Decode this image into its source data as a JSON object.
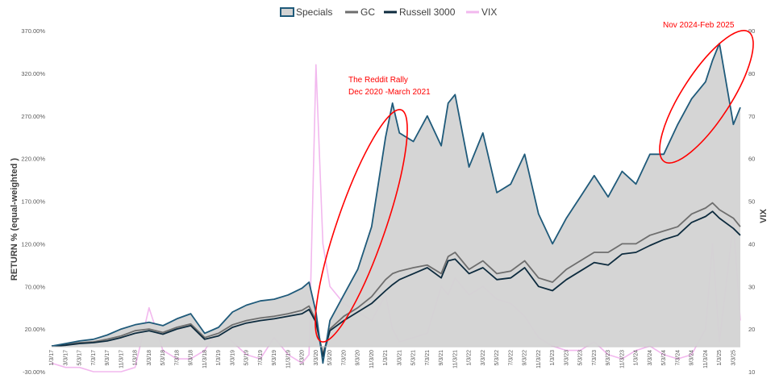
{
  "chart_data": {
    "type": "line",
    "legend": [
      {
        "name": "Specials",
        "color": "#1f5a7a",
        "style": "area-outline"
      },
      {
        "name": "GC",
        "color": "#6e6e6e",
        "style": "line"
      },
      {
        "name": "Russell 3000",
        "color": "#0d2b3e",
        "style": "line"
      },
      {
        "name": "VIX",
        "color": "#f2b8ee",
        "style": "line"
      }
    ],
    "legend_position": "top",
    "ylabel_left": "RETURN % (equal-weighted )",
    "ylabel_right": "VIX",
    "y_left_ticks": [
      "370.00%",
      "320.00%",
      "270.00%",
      "220.00%",
      "170.00%",
      "120.00%",
      "70.00%",
      "20.00%",
      "-30.00%"
    ],
    "y_left_range": [
      -30,
      370
    ],
    "y_right_ticks": [
      "90",
      "80",
      "70",
      "60",
      "50",
      "40",
      "30",
      "20",
      "10"
    ],
    "y_right_range": [
      10,
      90
    ],
    "x_ticks": [
      "1/3/17",
      "3/3/17",
      "5/3/17",
      "7/3/17",
      "9/3/17",
      "11/3/17",
      "1/3/18",
      "3/3/18",
      "5/3/18",
      "7/3/18",
      "9/3/18",
      "11/3/18",
      "1/3/19",
      "3/3/19",
      "5/3/19",
      "7/3/19",
      "9/3/19",
      "11/3/19",
      "1/3/20",
      "3/3/20",
      "5/3/20",
      "7/3/20",
      "9/3/20",
      "11/3/20",
      "1/3/21",
      "3/3/21",
      "5/3/21",
      "7/3/21",
      "9/3/21",
      "11/3/21",
      "1/3/22",
      "3/3/22",
      "5/3/22",
      "7/3/22",
      "9/3/22",
      "11/3/22",
      "1/3/23",
      "3/3/23",
      "5/3/23",
      "7/3/23",
      "9/3/23",
      "11/3/23",
      "1/3/24",
      "3/3/24",
      "5/3/24",
      "7/3/24",
      "9/3/24",
      "11/3/24",
      "1/3/25",
      "3/3/25"
    ],
    "grid": false,
    "x_months_from_start": [
      0,
      2,
      4,
      6,
      8,
      10,
      12,
      14,
      16,
      18,
      20,
      22,
      24,
      26,
      28,
      30,
      32,
      34,
      36,
      37,
      38,
      39,
      40,
      42,
      44,
      46,
      48,
      49,
      50,
      52,
      54,
      56,
      57,
      58,
      60,
      62,
      64,
      66,
      68,
      70,
      72,
      74,
      76,
      78,
      80,
      82,
      84,
      86,
      88,
      90,
      92,
      94,
      95,
      96,
      98,
      99
    ],
    "series": [
      {
        "name": "Specials",
        "axis": "left",
        "values": [
          0,
          3,
          6,
          8,
          13,
          20,
          25,
          28,
          24,
          32,
          38,
          15,
          22,
          40,
          48,
          53,
          55,
          60,
          68,
          75,
          40,
          -20,
          30,
          60,
          90,
          140,
          245,
          285,
          250,
          240,
          270,
          235,
          285,
          295,
          210,
          250,
          180,
          190,
          225,
          155,
          120,
          150,
          175,
          200,
          175,
          205,
          190,
          225,
          225,
          260,
          290,
          310,
          335,
          355,
          260,
          280
        ]
      },
      {
        "name": "GC",
        "axis": "left",
        "values": [
          0,
          2,
          4,
          5,
          8,
          12,
          18,
          20,
          16,
          22,
          26,
          10,
          15,
          25,
          30,
          33,
          35,
          38,
          42,
          47,
          30,
          -10,
          20,
          35,
          45,
          58,
          78,
          85,
          88,
          92,
          95,
          85,
          105,
          110,
          90,
          100,
          85,
          88,
          100,
          80,
          75,
          90,
          100,
          110,
          110,
          120,
          120,
          130,
          135,
          140,
          155,
          162,
          168,
          160,
          150,
          140
        ]
      },
      {
        "name": "Russell 3000",
        "axis": "left",
        "values": [
          0,
          1,
          3,
          4,
          6,
          10,
          15,
          18,
          14,
          20,
          24,
          8,
          12,
          22,
          27,
          30,
          32,
          35,
          38,
          43,
          28,
          -12,
          18,
          30,
          40,
          50,
          65,
          72,
          78,
          85,
          92,
          80,
          100,
          102,
          85,
          92,
          78,
          80,
          92,
          70,
          65,
          78,
          88,
          98,
          95,
          108,
          110,
          118,
          125,
          130,
          145,
          152,
          158,
          150,
          138,
          130
        ]
      },
      {
        "name": "VIX",
        "axis": "right",
        "values": [
          12,
          11,
          11,
          10,
          10,
          10,
          11,
          25,
          15,
          13,
          13,
          15,
          20,
          17,
          14,
          13,
          18,
          14,
          12,
          14,
          82,
          40,
          30,
          26,
          24,
          22,
          28,
          20,
          17,
          18,
          19,
          30,
          28,
          32,
          28,
          30,
          27,
          26,
          23,
          18,
          16,
          15,
          15,
          17,
          14,
          13,
          15,
          16,
          14,
          13,
          14,
          20,
          40,
          17,
          45,
          22
        ]
      }
    ]
  }
}
